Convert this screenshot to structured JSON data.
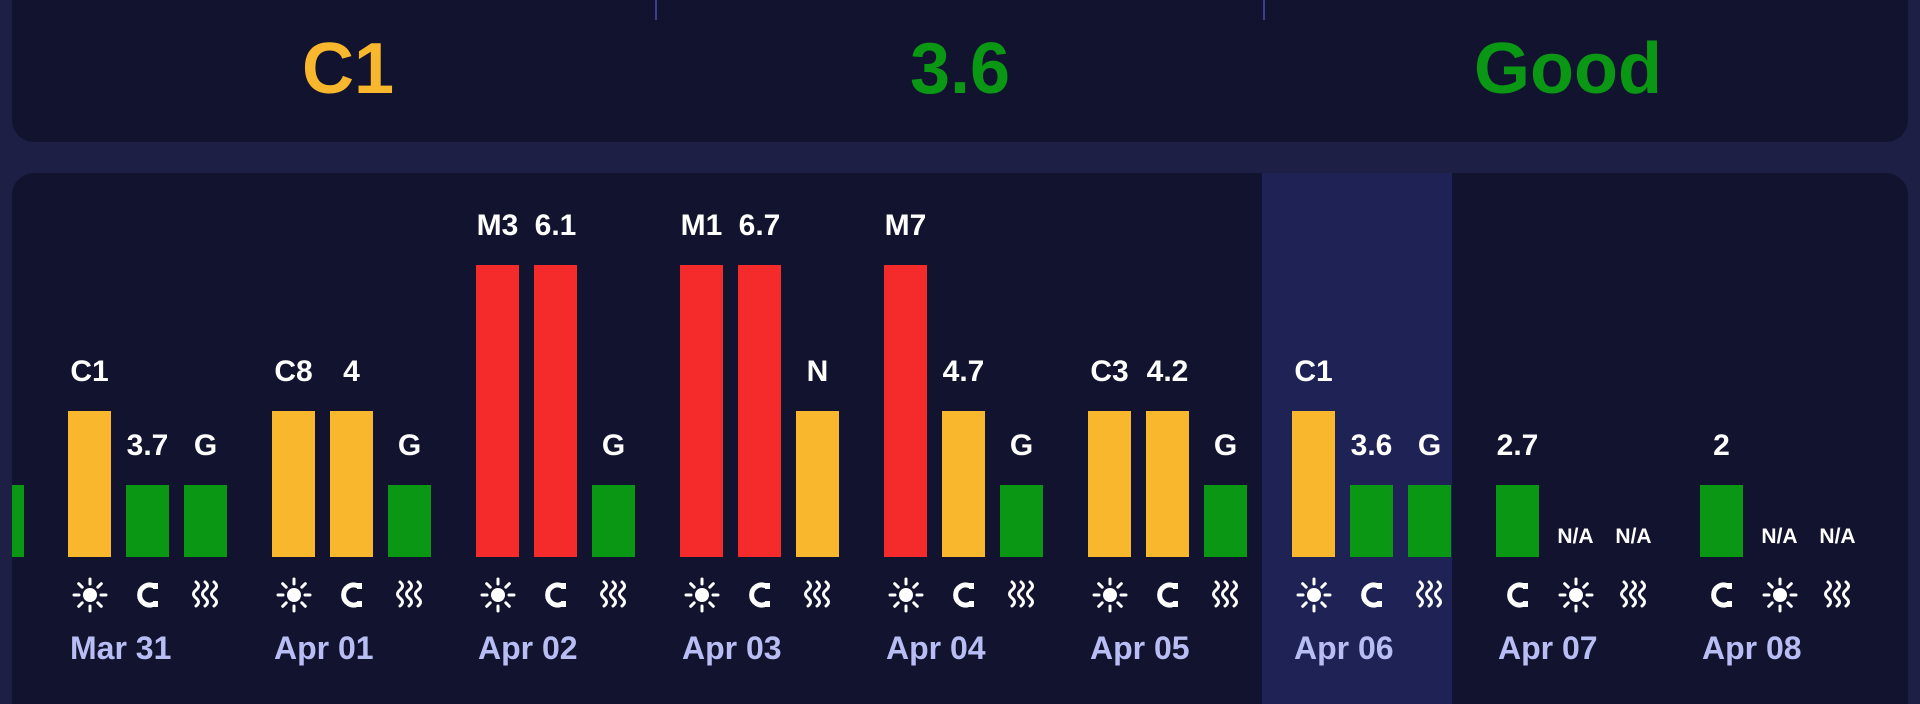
{
  "summary": {
    "values": [
      {
        "text": "C1",
        "color": "#f8b72c"
      },
      {
        "text": "3.6",
        "color": "#0a9714"
      },
      {
        "text": "Good",
        "color": "#0a9714"
      }
    ]
  },
  "colors": {
    "red": "#f52a2a",
    "yellow": "#f8b72c",
    "green": "#0a9714",
    "date": "#b8bdf4",
    "highlight": "#1f2254"
  },
  "days": [
    {
      "date": "Mar 31",
      "highlight": false,
      "bars": [
        {
          "label": "C1",
          "level": 2,
          "color": "yellow"
        },
        {
          "label": "3.7",
          "level": 1,
          "color": "green"
        },
        {
          "label": "G",
          "level": 1,
          "color": "green"
        }
      ],
      "icons": [
        "sun-icon",
        "magnet-icon",
        "waves-icon"
      ]
    },
    {
      "date": "Apr 01",
      "highlight": false,
      "bars": [
        {
          "label": "C8",
          "level": 2,
          "color": "yellow"
        },
        {
          "label": "4",
          "level": 2,
          "color": "yellow"
        },
        {
          "label": "G",
          "level": 1,
          "color": "green"
        }
      ],
      "icons": [
        "sun-icon",
        "magnet-icon",
        "waves-icon"
      ]
    },
    {
      "date": "Apr 02",
      "highlight": false,
      "bars": [
        {
          "label": "M3",
          "level": 4,
          "color": "red"
        },
        {
          "label": "6.1",
          "level": 4,
          "color": "red"
        },
        {
          "label": "G",
          "level": 1,
          "color": "green"
        }
      ],
      "icons": [
        "sun-icon",
        "magnet-icon",
        "waves-icon"
      ]
    },
    {
      "date": "Apr 03",
      "highlight": false,
      "bars": [
        {
          "label": "M1",
          "level": 4,
          "color": "red"
        },
        {
          "label": "6.7",
          "level": 4,
          "color": "red"
        },
        {
          "label": "N",
          "level": 2,
          "color": "yellow"
        }
      ],
      "icons": [
        "sun-icon",
        "magnet-icon",
        "waves-icon"
      ]
    },
    {
      "date": "Apr 04",
      "highlight": false,
      "bars": [
        {
          "label": "M7",
          "level": 4,
          "color": "red"
        },
        {
          "label": "4.7",
          "level": 2,
          "color": "yellow"
        },
        {
          "label": "G",
          "level": 1,
          "color": "green"
        }
      ],
      "icons": [
        "sun-icon",
        "magnet-icon",
        "waves-icon"
      ]
    },
    {
      "date": "Apr 05",
      "highlight": false,
      "bars": [
        {
          "label": "C3",
          "level": 2,
          "color": "yellow"
        },
        {
          "label": "4.2",
          "level": 2,
          "color": "yellow"
        },
        {
          "label": "G",
          "level": 1,
          "color": "green"
        }
      ],
      "icons": [
        "sun-icon",
        "magnet-icon",
        "waves-icon"
      ]
    },
    {
      "date": "Apr 06",
      "highlight": true,
      "bars": [
        {
          "label": "C1",
          "level": 2,
          "color": "yellow"
        },
        {
          "label": "3.6",
          "level": 1,
          "color": "green"
        },
        {
          "label": "G",
          "level": 1,
          "color": "green"
        }
      ],
      "icons": [
        "sun-icon",
        "magnet-icon",
        "waves-icon"
      ]
    },
    {
      "date": "Apr 07",
      "highlight": false,
      "bars": [
        {
          "label": "2.7",
          "level": 1,
          "color": "green"
        },
        {
          "label": "N/A",
          "level": 0,
          "color": "none"
        },
        {
          "label": "N/A",
          "level": 0,
          "color": "none"
        }
      ],
      "icons": [
        "magnet-icon",
        "sun-icon",
        "waves-icon"
      ]
    },
    {
      "date": "Apr 08",
      "highlight": false,
      "bars": [
        {
          "label": "2",
          "level": 1,
          "color": "green"
        },
        {
          "label": "N/A",
          "level": 0,
          "color": "none"
        },
        {
          "label": "N/A",
          "level": 0,
          "color": "none"
        }
      ],
      "icons": [
        "magnet-icon",
        "sun-icon",
        "waves-icon"
      ]
    }
  ]
}
